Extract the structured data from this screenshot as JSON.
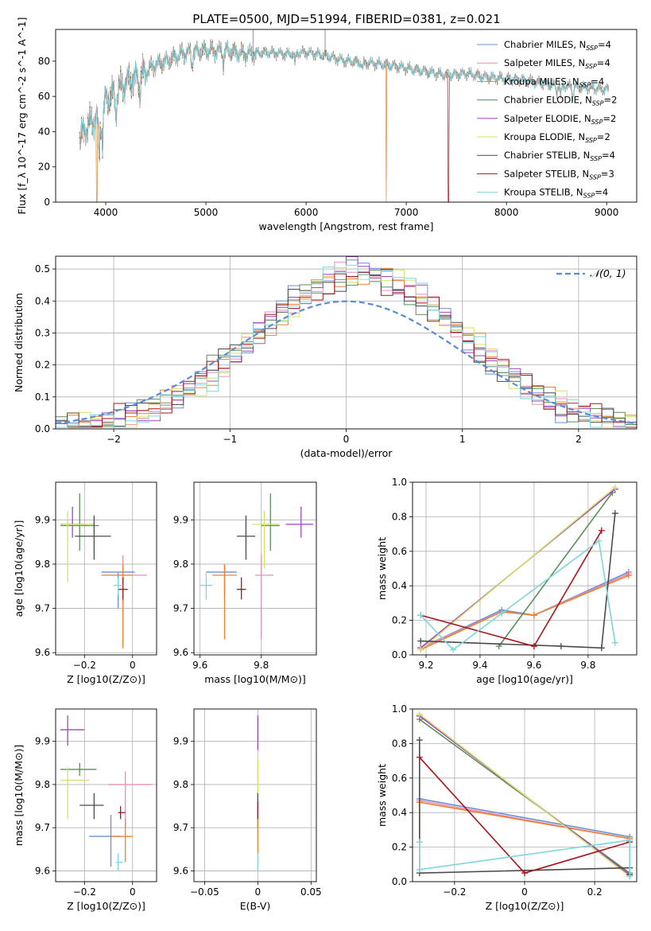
{
  "figure": {
    "title": "PLATE=0500, MJD=51994, FIBERID=0381, z=0.021"
  },
  "colors": [
    "#6a8fd6",
    "#e58fb7",
    "#ef8030",
    "#5a8f5a",
    "#a044c8",
    "#d6e066",
    "#4a4a4a",
    "#a8141a",
    "#7ed6dc"
  ],
  "series_names": [
    {
      "model": "Chabrier MILES",
      "nssp": "4"
    },
    {
      "model": "Salpeter MILES",
      "nssp": "4"
    },
    {
      "model": "Kroupa MILES",
      "nssp": "4"
    },
    {
      "model": "Chabrier ELODIE",
      "nssp": "2"
    },
    {
      "model": "Salpeter ELODIE",
      "nssp": "2"
    },
    {
      "model": "Kroupa ELODIE",
      "nssp": "2"
    },
    {
      "model": "Chabrier STELIB",
      "nssp": "4"
    },
    {
      "model": "Salpeter STELIB",
      "nssp": "3"
    },
    {
      "model": "Kroupa STELIB",
      "nssp": "4"
    }
  ],
  "chart_data": [
    {
      "id": "spectrum",
      "type": "line",
      "xlabel": "wavelength [Angstrom, rest frame]",
      "ylabel": "Flux [f_λ 10^-17 erg cm^-2 s^-1 A^-1]",
      "xlim": [
        3500,
        9300
      ],
      "ylim": [
        0,
        98
      ],
      "xticks": [
        4000,
        5000,
        6000,
        7000,
        8000,
        9000
      ],
      "yticks": [
        0,
        20,
        40,
        60,
        80
      ],
      "grid": false,
      "legend": "top-right",
      "continuum": {
        "x": [
          3740,
          3800,
          3900,
          3950,
          4000,
          4100,
          4200,
          4300,
          4400,
          4500,
          4600,
          4800,
          5000,
          5200,
          5400,
          5600,
          5800,
          6000,
          6200,
          6400,
          6600,
          6800,
          7000,
          7200,
          7400,
          7600,
          7800,
          8000,
          8200,
          8400,
          8600,
          8800,
          9000
        ],
        "y": [
          35,
          42,
          48,
          46,
          58,
          62,
          68,
          70,
          74,
          78,
          80,
          85,
          86,
          86,
          84,
          85,
          84,
          85,
          83,
          80,
          79,
          78,
          76,
          74,
          72,
          73,
          71,
          70,
          69,
          67,
          66,
          65,
          64
        ]
      },
      "drops": [
        {
          "series": 2,
          "x": 3910,
          "y": 0
        },
        {
          "series": 2,
          "x": 6800,
          "y": 0
        },
        {
          "series": 7,
          "x": 7420,
          "y": 0
        }
      ],
      "spikes": [
        {
          "x": 5470,
          "y": 98
        },
        {
          "x": 6190,
          "y": 98
        }
      ]
    },
    {
      "id": "residuals",
      "type": "histogram",
      "xlabel": "(data-model)/error",
      "ylabel": "Normed distribution",
      "xlim": [
        -2.5,
        2.5
      ],
      "ylim": [
        0,
        0.54
      ],
      "xticks": [
        -2,
        -1,
        0,
        1,
        2
      ],
      "yticks": [
        0.0,
        0.1,
        0.2,
        0.3,
        0.4,
        0.5
      ],
      "grid": true,
      "legend": "top-right",
      "normal_label": "𝒩(0, 1)",
      "bin_width": 0.1
    },
    {
      "id": "age_vs_z",
      "type": "scatter",
      "xlabel": "Z [log10(Z/Z⊙)]",
      "ylabel": "age [log10(age/yr)]",
      "xlim": [
        -0.32,
        0.1
      ],
      "ylim": [
        9.595,
        9.985
      ],
      "xticks": [
        -0.2,
        0.0
      ],
      "yticks": [
        9.6,
        9.7,
        9.8,
        9.9
      ],
      "grid": true,
      "points": [
        {
          "s": 0,
          "x": -0.06,
          "y": 9.782,
          "xl": -0.13,
          "xh": 0.01,
          "yl": 9.7,
          "yh": 9.78
        },
        {
          "s": 1,
          "x": -0.04,
          "y": 9.775,
          "xl": -0.12,
          "xh": 0.06,
          "yl": 9.62,
          "yh": 9.82
        },
        {
          "s": 2,
          "x": -0.04,
          "y": 9.775,
          "xl": -0.13,
          "xh": 0.0,
          "yl": 9.61,
          "yh": 9.8
        },
        {
          "s": 3,
          "x": -0.22,
          "y": 9.887,
          "xl": -0.3,
          "xh": -0.14,
          "yl": 9.83,
          "yh": 9.96
        },
        {
          "s": 4,
          "x": -0.25,
          "y": 9.89,
          "xl": -0.3,
          "xh": -0.2,
          "yl": 9.86,
          "yh": 9.93
        },
        {
          "s": 5,
          "x": -0.27,
          "y": 9.89,
          "xl": -0.3,
          "xh": -0.16,
          "yl": 9.76,
          "yh": 9.92
        },
        {
          "s": 6,
          "x": -0.16,
          "y": 9.863,
          "xl": -0.24,
          "xh": -0.09,
          "yl": 9.81,
          "yh": 9.91
        },
        {
          "s": 7,
          "x": -0.04,
          "y": 9.743,
          "xl": -0.06,
          "xh": -0.02,
          "yl": 9.72,
          "yh": 9.77
        },
        {
          "s": 8,
          "x": -0.06,
          "y": 9.752,
          "xl": -0.08,
          "xh": -0.04,
          "yl": 9.73,
          "yh": 9.77
        }
      ]
    },
    {
      "id": "age_vs_mass",
      "type": "scatter",
      "xlabel": "mass [log10(M/M⊙)]",
      "ylabel": "",
      "xlim": [
        9.58,
        9.98
      ],
      "ylim": [
        9.595,
        9.985
      ],
      "xticks": [
        9.6,
        9.8
      ],
      "yticks": [
        9.6,
        9.7,
        9.8,
        9.9
      ],
      "grid": true,
      "points": [
        {
          "s": 0,
          "x": 9.68,
          "y": 9.782,
          "xl": 9.62,
          "xh": 9.72,
          "yl": 9.73,
          "yh": 9.8
        },
        {
          "s": 1,
          "x": 9.8,
          "y": 9.775,
          "xl": 9.78,
          "xh": 9.84,
          "yl": 9.63,
          "yh": 9.82
        },
        {
          "s": 2,
          "x": 9.68,
          "y": 9.775,
          "xl": 9.64,
          "xh": 9.72,
          "yl": 9.63,
          "yh": 9.8
        },
        {
          "s": 3,
          "x": 9.83,
          "y": 9.887,
          "xl": 9.8,
          "xh": 9.86,
          "yl": 9.83,
          "yh": 9.96
        },
        {
          "s": 4,
          "x": 9.93,
          "y": 9.89,
          "xl": 9.88,
          "xh": 9.97,
          "yl": 9.86,
          "yh": 9.93
        },
        {
          "s": 5,
          "x": 9.81,
          "y": 9.89,
          "xl": 9.77,
          "xh": 9.86,
          "yl": 9.79,
          "yh": 9.92
        },
        {
          "s": 6,
          "x": 9.75,
          "y": 9.863,
          "xl": 9.72,
          "xh": 9.78,
          "yl": 9.81,
          "yh": 9.91
        },
        {
          "s": 7,
          "x": 9.735,
          "y": 9.743,
          "xl": 9.72,
          "xh": 9.75,
          "yl": 9.72,
          "yh": 9.77
        },
        {
          "s": 8,
          "x": 9.62,
          "y": 9.752,
          "xl": 9.6,
          "xh": 9.64,
          "yl": 9.72,
          "yh": 9.78
        }
      ]
    },
    {
      "id": "weight_vs_age",
      "type": "line",
      "xlabel": "age [log10(age/yr)]",
      "ylabel": "mass weight",
      "xlim": [
        9.15,
        9.98
      ],
      "ylim": [
        0,
        1
      ],
      "xticks": [
        9.2,
        9.4,
        9.6,
        9.8
      ],
      "yticks": [
        0.0,
        0.2,
        0.4,
        0.6,
        0.8,
        1.0
      ],
      "grid": true,
      "series": [
        {
          "s": 0,
          "x": [
            9.18,
            9.48,
            9.6,
            9.95
          ],
          "y": [
            0.04,
            0.26,
            0.23,
            0.48
          ]
        },
        {
          "s": 1,
          "x": [
            9.18,
            9.48,
            9.6,
            9.95
          ],
          "y": [
            0.04,
            0.25,
            0.23,
            0.47
          ]
        },
        {
          "s": 2,
          "x": [
            9.18,
            9.48,
            9.6,
            9.95
          ],
          "y": [
            0.03,
            0.25,
            0.23,
            0.46
          ]
        },
        {
          "s": 3,
          "x": [
            9.47,
            9.89
          ],
          "y": [
            0.05,
            0.94
          ]
        },
        {
          "s": 4,
          "x": [
            9.18,
            9.9
          ],
          "y": [
            0.04,
            0.96
          ]
        },
        {
          "s": 5,
          "x": [
            9.18,
            9.9
          ],
          "y": [
            0.03,
            0.97
          ]
        },
        {
          "s": 6,
          "x": [
            9.18,
            9.7,
            9.85,
            9.9
          ],
          "y": [
            0.08,
            0.05,
            0.04,
            0.82
          ]
        },
        {
          "s": 7,
          "x": [
            9.18,
            9.6,
            9.85
          ],
          "y": [
            0.23,
            0.05,
            0.72
          ]
        },
        {
          "s": 8,
          "x": [
            9.18,
            9.3,
            9.48,
            9.84,
            9.9
          ],
          "y": [
            0.23,
            0.03,
            0.24,
            0.66,
            0.07
          ]
        }
      ]
    },
    {
      "id": "mass_vs_z",
      "type": "scatter",
      "xlabel": "Z [log10(Z/Z⊙)]",
      "ylabel": "mass [log10(M/M⊙)]",
      "xlim": [
        -0.32,
        0.1
      ],
      "ylim": [
        9.575,
        9.975
      ],
      "xticks": [
        -0.2,
        0.0
      ],
      "yticks": [
        9.6,
        9.7,
        9.8,
        9.9
      ],
      "grid": true,
      "points": [
        {
          "s": 0,
          "x": -0.09,
          "y": 9.68,
          "xl": -0.18,
          "xh": -0.05,
          "yl": 9.61,
          "yh": 9.73
        },
        {
          "s": 1,
          "x": -0.03,
          "y": 9.8,
          "xl": -0.1,
          "xh": 0.08,
          "yl": 9.7,
          "yh": 9.83
        },
        {
          "s": 2,
          "x": -0.03,
          "y": 9.68,
          "xl": -0.09,
          "xh": 0.0,
          "yl": 9.62,
          "yh": 9.72
        },
        {
          "s": 3,
          "x": -0.22,
          "y": 9.835,
          "xl": -0.3,
          "xh": -0.15,
          "yl": 9.82,
          "yh": 9.85
        },
        {
          "s": 4,
          "x": -0.27,
          "y": 9.927,
          "xl": -0.3,
          "xh": -0.2,
          "yl": 9.89,
          "yh": 9.96
        },
        {
          "s": 5,
          "x": -0.27,
          "y": 9.81,
          "xl": -0.3,
          "xh": -0.18,
          "yl": 9.72,
          "yh": 9.84
        },
        {
          "s": 6,
          "x": -0.16,
          "y": 9.752,
          "xl": -0.22,
          "xh": -0.12,
          "yl": 9.72,
          "yh": 9.78
        },
        {
          "s": 7,
          "x": -0.05,
          "y": 9.735,
          "xl": -0.06,
          "xh": -0.03,
          "yl": 9.72,
          "yh": 9.75
        },
        {
          "s": 8,
          "x": -0.06,
          "y": 9.62,
          "xl": -0.07,
          "xh": -0.04,
          "yl": 9.6,
          "yh": 9.64
        }
      ]
    },
    {
      "id": "mass_vs_ebv",
      "type": "scatter",
      "xlabel": "E(B-V)",
      "ylabel": "",
      "xlim": [
        -0.06,
        0.055
      ],
      "ylim": [
        9.575,
        9.975
      ],
      "xticks": [
        -0.05,
        0.0,
        0.05
      ],
      "yticks": [
        9.6,
        9.7,
        9.8,
        9.9
      ],
      "grid": true,
      "points": [
        {
          "s": 4,
          "x": 0.0,
          "y": 9.927,
          "xl": 0.0,
          "xh": 0.0,
          "yl": 9.88,
          "yh": 9.96
        },
        {
          "s": 5,
          "x": 0.0,
          "y": 9.81,
          "xl": 0.0,
          "xh": 0.0,
          "yl": 9.78,
          "yh": 9.86
        },
        {
          "s": 6,
          "x": 0.0,
          "y": 9.752,
          "xl": 0.0,
          "xh": 0.0,
          "yl": 9.72,
          "yh": 9.78
        },
        {
          "s": 7,
          "x": 0.0,
          "y": 9.735,
          "xl": 0.0,
          "xh": 0.0,
          "yl": 9.7,
          "yh": 9.76
        },
        {
          "s": 2,
          "x": 0.0,
          "y": 9.68,
          "xl": 0.0,
          "xh": 0.0,
          "yl": 9.64,
          "yh": 9.72
        },
        {
          "s": 8,
          "x": 0.0,
          "y": 9.62,
          "xl": 0.0,
          "xh": 0.0,
          "yl": 9.6,
          "yh": 9.64
        }
      ]
    },
    {
      "id": "weight_vs_z",
      "type": "line",
      "xlabel": "Z [log10(Z/Z⊙)]",
      "ylabel": "mass weight",
      "xlim": [
        -0.32,
        0.32
      ],
      "ylim": [
        0,
        1
      ],
      "xticks": [
        -0.2,
        0.0,
        0.2
      ],
      "yticks": [
        0.0,
        0.2,
        0.4,
        0.6,
        0.8,
        1.0
      ],
      "grid": true,
      "series": [
        {
          "s": 0,
          "x": [
            -0.3,
            0.3
          ],
          "y": [
            0.48,
            0.26
          ]
        },
        {
          "s": 1,
          "x": [
            -0.3,
            0.3
          ],
          "y": [
            0.47,
            0.25
          ]
        },
        {
          "s": 2,
          "x": [
            -0.3,
            -0.3,
            0.3
          ],
          "y": [
            0.23,
            0.46,
            0.25
          ]
        },
        {
          "s": 3,
          "x": [
            -0.3,
            0.3
          ],
          "y": [
            0.94,
            0.05
          ]
        },
        {
          "s": 4,
          "x": [
            -0.3,
            0.3
          ],
          "y": [
            0.96,
            0.04
          ]
        },
        {
          "s": 5,
          "x": [
            -0.3,
            0.3
          ],
          "y": [
            0.97,
            0.03
          ]
        },
        {
          "s": 6,
          "x": [
            -0.3,
            -0.3,
            0.3,
            0.3
          ],
          "y": [
            0.82,
            0.05,
            0.08,
            0.04
          ]
        },
        {
          "s": 7,
          "x": [
            -0.3,
            0.0,
            0.3
          ],
          "y": [
            0.72,
            0.05,
            0.23
          ]
        },
        {
          "s": 8,
          "x": [
            -0.3,
            -0.3,
            0.3,
            0.3
          ],
          "y": [
            0.23,
            0.07,
            0.24,
            0.03
          ]
        }
      ]
    }
  ]
}
